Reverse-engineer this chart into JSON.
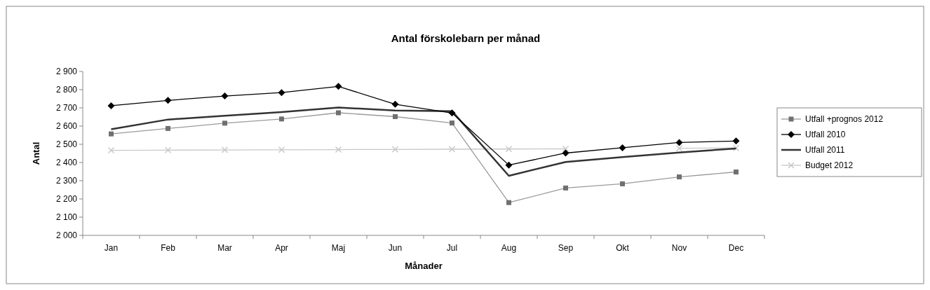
{
  "chart_data": {
    "type": "line",
    "title": "Antal förskolebarn per månad",
    "xlabel": "Månader",
    "ylabel": "Antal",
    "categories": [
      "Jan",
      "Feb",
      "Mar",
      "Apr",
      "Maj",
      "Jun",
      "Jul",
      "Aug",
      "Sep",
      "Okt",
      "Nov",
      "Dec"
    ],
    "series": [
      {
        "name": "Utfall +prognos 2012",
        "color": "#707070",
        "marker": "square",
        "values": [
          2557,
          2587,
          2616,
          2639,
          2673,
          2652,
          2617,
          2180,
          2260,
          2283,
          2321,
          2348
        ]
      },
      {
        "name": "Utfall 2010",
        "color": "#000000",
        "marker": "diamond",
        "values": [
          2712,
          2741,
          2765,
          2784,
          2818,
          2720,
          2672,
          2386,
          2452,
          2481,
          2510,
          2518
        ]
      },
      {
        "name": "Utfall 2011",
        "color": "#333333",
        "marker": "none",
        "values": [
          2583,
          2636,
          2657,
          2677,
          2702,
          2686,
          2682,
          2327,
          2403,
          2430,
          2455,
          2477
        ]
      },
      {
        "name": "Budget 2012",
        "color": "#c8c8c8",
        "marker": "cross",
        "values": [
          2467,
          2468,
          2469,
          2470,
          2471,
          2472,
          2473,
          2474,
          2475,
          null,
          2478,
          2480
        ]
      }
    ],
    "ylim": [
      2000,
      2900
    ],
    "yticks": [
      {
        "value": 2000,
        "label": "2 000"
      },
      {
        "value": 2100,
        "label": "2 100"
      },
      {
        "value": 2200,
        "label": "2 200"
      },
      {
        "value": 2300,
        "label": "2 300"
      },
      {
        "value": 2400,
        "label": "2 400"
      },
      {
        "value": 2500,
        "label": "2 500"
      },
      {
        "value": 2600,
        "label": "2 600"
      },
      {
        "value": 2700,
        "label": "2 700"
      },
      {
        "value": 2800,
        "label": "2 800"
      },
      {
        "value": 2900,
        "label": "2 900"
      }
    ],
    "grid": false,
    "legend": "right",
    "line_style": "solid"
  }
}
